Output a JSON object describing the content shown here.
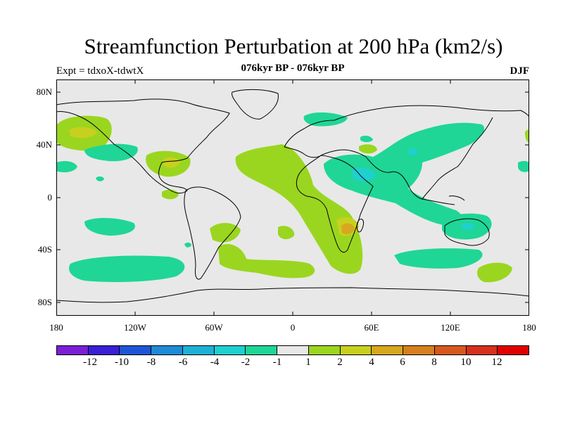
{
  "header": {
    "title": "Streamfunction Perturbation at 200 hPa (km2/s)",
    "subtitle": "076kyr BP - 076kyr BP",
    "left_label": "Expt = tdxoX-tdwtX",
    "right_label": "DJF"
  },
  "axes": {
    "lat_labels": [
      "80N",
      "40N",
      "0",
      "40S",
      "80S"
    ],
    "lon_labels": [
      "180",
      "120W",
      "60W",
      "0",
      "60E",
      "120E",
      "180"
    ]
  },
  "colorbar": {
    "colors": [
      "#7a1fd6",
      "#3a1fd6",
      "#1f54d6",
      "#1f8ad6",
      "#1fb0d6",
      "#1fd0d0",
      "#1fd696",
      "#e8e8e8",
      "#9ad61f",
      "#c8d01f",
      "#d6a81f",
      "#d6801f",
      "#d6581f",
      "#d6301f",
      "#e00000"
    ],
    "labels": [
      "-12",
      "-10",
      "-8",
      "-6",
      "-4",
      "-2",
      "-1",
      "1",
      "2",
      "4",
      "6",
      "8",
      "10",
      "12"
    ]
  },
  "map_colors": {
    "background": "#e8e8e8",
    "neg1": "#1fd696",
    "neg2": "#1fd0d0",
    "pos1": "#9ad61f",
    "pos2": "#c8d01f",
    "pos4": "#d6a81f"
  }
}
